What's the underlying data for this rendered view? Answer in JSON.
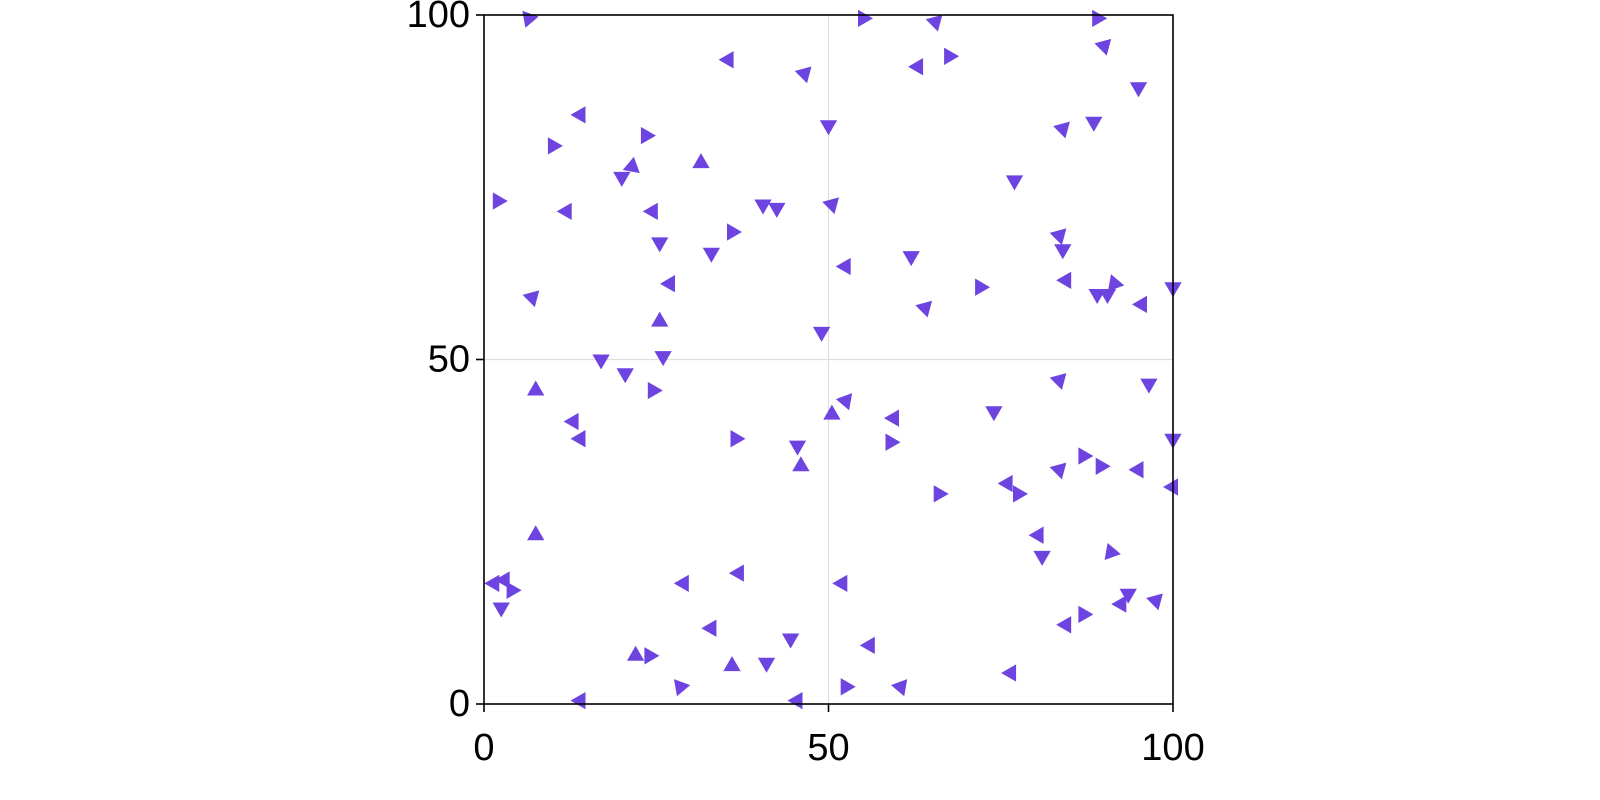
{
  "chart_data": {
    "type": "scatter",
    "title": "",
    "xlabel": "",
    "ylabel": "",
    "xlim": [
      0,
      100
    ],
    "ylim": [
      0,
      100
    ],
    "xticks": [
      0,
      50,
      100
    ],
    "yticks": [
      0,
      50,
      100
    ],
    "xtick_labels": [
      "0",
      "50",
      "100"
    ],
    "ytick_labels": [
      "0",
      "50",
      "100"
    ],
    "grid": true,
    "legend": "none",
    "marker": "triangle",
    "color": "#6e44e0",
    "points": [
      [
        6.5,
        99.5,
        200
      ],
      [
        35.5,
        93.5,
        30
      ],
      [
        46.5,
        91.5,
        45
      ],
      [
        55,
        99.5,
        330
      ],
      [
        65.5,
        99,
        45
      ],
      [
        63,
        92.5,
        270
      ],
      [
        67.5,
        94,
        90
      ],
      [
        89,
        99.5,
        330
      ],
      [
        90,
        95.5,
        45
      ],
      [
        95,
        89.5,
        60
      ],
      [
        14,
        85.5,
        270
      ],
      [
        10,
        81,
        210
      ],
      [
        23.5,
        82.5,
        90
      ],
      [
        50,
        84,
        180
      ],
      [
        84,
        83.5,
        45
      ],
      [
        88.5,
        84.5,
        180
      ],
      [
        31.5,
        78.5,
        0
      ],
      [
        20,
        76.5,
        60
      ],
      [
        21.5,
        78,
        130
      ],
      [
        2,
        73,
        90
      ],
      [
        12,
        71.5,
        270
      ],
      [
        24.5,
        71.5,
        270
      ],
      [
        40.5,
        72.5,
        60
      ],
      [
        42.5,
        72,
        300
      ],
      [
        50.5,
        72.5,
        45
      ],
      [
        77,
        76,
        180
      ],
      [
        36,
        68.5,
        90
      ],
      [
        25.5,
        67,
        300
      ],
      [
        33,
        65.5,
        180
      ],
      [
        52.5,
        63.5,
        150
      ],
      [
        62,
        65,
        180
      ],
      [
        83.5,
        68,
        45
      ],
      [
        84,
        66,
        180
      ],
      [
        72,
        60.5,
        90
      ],
      [
        84.5,
        61.5,
        270
      ],
      [
        90.5,
        59.5,
        300
      ],
      [
        91.5,
        61,
        100
      ],
      [
        7,
        59,
        45
      ],
      [
        27,
        61,
        270
      ],
      [
        64,
        57.5,
        45
      ],
      [
        89,
        59.5,
        60
      ],
      [
        95.5,
        58,
        30
      ],
      [
        100,
        60.5,
        180
      ],
      [
        25.5,
        55.5,
        0
      ],
      [
        49,
        54,
        60
      ],
      [
        17,
        50,
        180
      ],
      [
        20.5,
        48,
        60
      ],
      [
        26,
        50.5,
        300
      ],
      [
        7.5,
        45.5,
        0
      ],
      [
        24.5,
        45.5,
        210
      ],
      [
        13,
        41,
        270
      ],
      [
        14,
        38.5,
        30
      ],
      [
        50.5,
        42,
        0
      ],
      [
        52.5,
        44,
        160
      ],
      [
        59.5,
        41.5,
        30
      ],
      [
        74,
        42.5,
        60
      ],
      [
        83.5,
        47,
        45
      ],
      [
        96.5,
        46.5,
        60
      ],
      [
        36.5,
        38.5,
        210
      ],
      [
        45.5,
        37.5,
        180
      ],
      [
        46,
        34.5,
        0
      ],
      [
        59,
        38,
        210
      ],
      [
        83.5,
        34,
        45
      ],
      [
        87,
        36,
        90
      ],
      [
        89.5,
        34.5,
        210
      ],
      [
        95,
        34,
        270
      ],
      [
        100,
        38.5,
        180
      ],
      [
        66,
        30.5,
        210
      ],
      [
        76,
        32,
        30
      ],
      [
        77.5,
        30.5,
        210
      ],
      [
        100,
        31.5,
        270
      ],
      [
        7.5,
        24.5,
        0
      ],
      [
        80.5,
        24.5,
        270
      ],
      [
        81,
        21.5,
        300
      ],
      [
        91,
        22,
        100
      ],
      [
        1.5,
        17.5,
        150
      ],
      [
        3,
        18,
        30
      ],
      [
        4,
        16.5,
        210
      ],
      [
        2.5,
        14,
        180
      ],
      [
        29,
        17.5,
        30
      ],
      [
        37,
        19,
        270
      ],
      [
        52,
        17.5,
        30
      ],
      [
        92.5,
        14.5,
        270
      ],
      [
        93.5,
        16,
        60
      ],
      [
        97.5,
        15,
        45
      ],
      [
        33,
        11,
        270
      ],
      [
        44.5,
        9.5,
        60
      ],
      [
        56,
        8.5,
        30
      ],
      [
        84.5,
        11.5,
        30
      ],
      [
        87,
        13,
        90
      ],
      [
        22,
        7,
        120
      ],
      [
        24,
        7,
        210
      ],
      [
        36,
        5.5,
        120
      ],
      [
        41,
        6,
        300
      ],
      [
        52.5,
        2.5,
        90
      ],
      [
        76.5,
        4.5,
        270
      ],
      [
        28.5,
        2.5,
        200
      ],
      [
        60.5,
        2.5,
        160
      ],
      [
        14,
        0.5,
        150
      ],
      [
        45.5,
        0.5,
        30
      ]
    ]
  }
}
